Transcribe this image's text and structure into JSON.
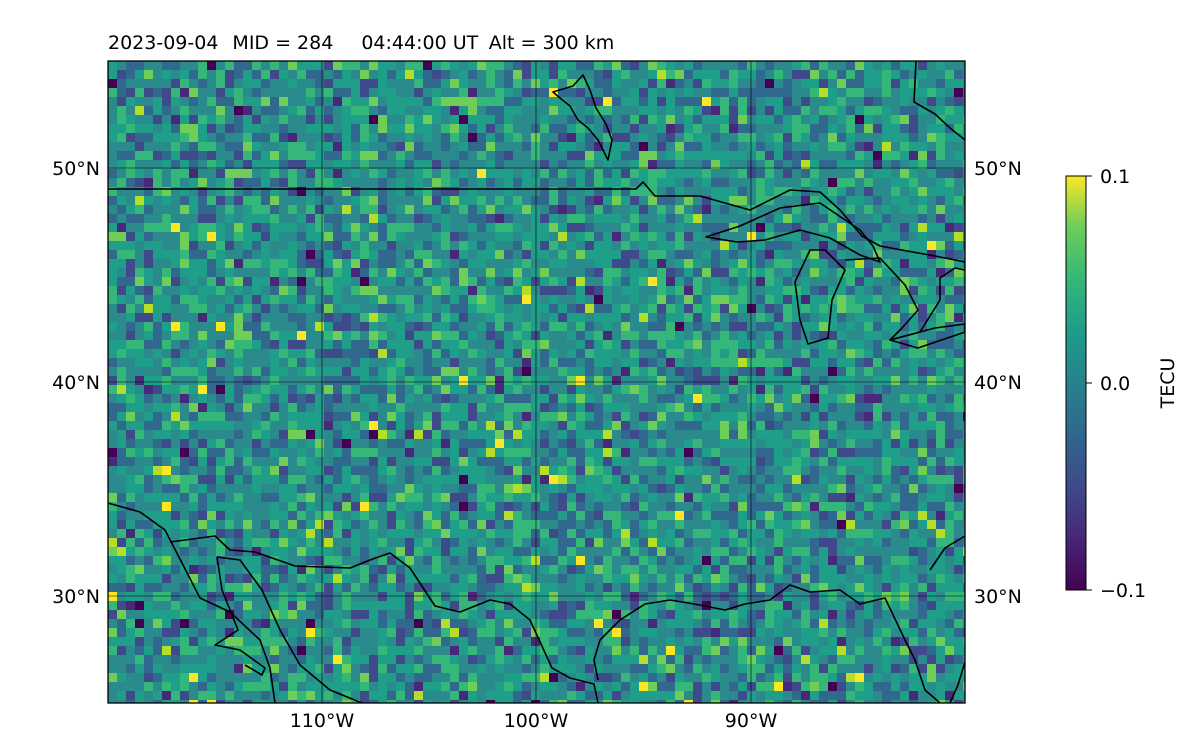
{
  "title": {
    "date": "2023-09-04",
    "mid": "MID = 284",
    "time": "04:44:00  UT",
    "alt": "Alt = 300 km"
  },
  "map": {
    "lat_range": [
      25,
      55
    ],
    "lon_range": [
      -120,
      -80
    ],
    "lat_ticks": [
      {
        "value": 30,
        "label": "30°N"
      },
      {
        "value": 40,
        "label": "40°N"
      },
      {
        "value": 50,
        "label": "50°N"
      }
    ],
    "lon_ticks": [
      {
        "value": -110,
        "label": "110°W"
      },
      {
        "value": -100,
        "label": "100°W"
      },
      {
        "value": -90,
        "label": "90°W"
      }
    ],
    "grid": true,
    "background_color": "#2a8a8c"
  },
  "colorbar": {
    "label": "TECU",
    "min": -0.1,
    "max": 0.1,
    "colormap": "viridis",
    "ticks": [
      {
        "value": 0.1,
        "label": "0.1"
      },
      {
        "value": 0.0,
        "label": "0.0"
      },
      {
        "value": -0.1,
        "label": "−0.1"
      }
    ]
  }
}
